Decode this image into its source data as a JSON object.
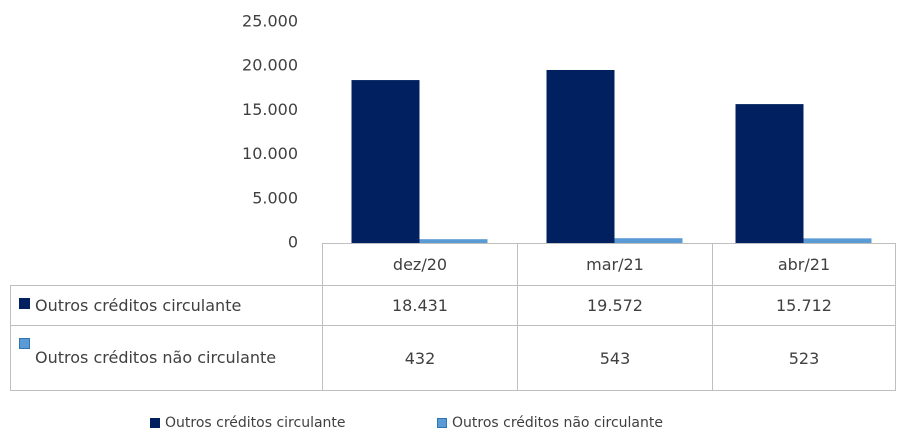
{
  "chart_data": {
    "type": "bar",
    "categories": [
      "dez/20",
      "mar/21",
      "abr/21"
    ],
    "series": [
      {
        "name": "Outros créditos circulante",
        "color": "#002060",
        "values": [
          18431,
          19572,
          15712
        ],
        "value_labels": [
          "18.431",
          "19.572",
          "15.712"
        ]
      },
      {
        "name": "Outros créditos não circulante",
        "color": "#5b9bd5",
        "values": [
          432,
          543,
          523
        ],
        "value_labels": [
          "432",
          "543",
          "523"
        ]
      }
    ],
    "ylim": [
      0,
      25000
    ],
    "yticks": [
      0,
      {
        "value": 5000,
        "label": "5.000"
      },
      {
        "value": 10000,
        "label": "10.000"
      },
      {
        "value": 15000,
        "label": "15.000"
      },
      {
        "value": 20000,
        "label": "20.000"
      },
      {
        "value": 25000,
        "label": "25.000"
      }
    ],
    "grid": false,
    "legend": "bottom"
  }
}
